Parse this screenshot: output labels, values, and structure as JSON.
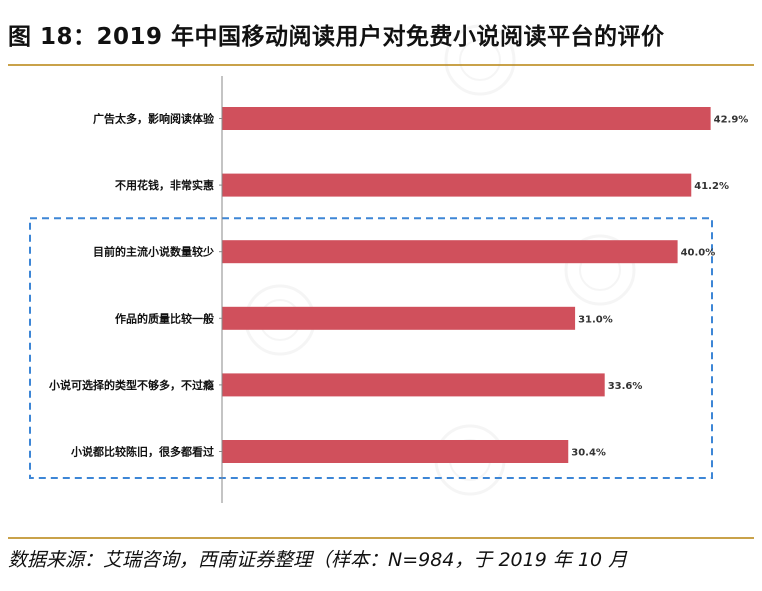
{
  "figure": {
    "title": "图 18：2019 年中国移动阅读用户对免费小说阅读平台的评价",
    "source": "数据来源：艾瑞咨询，西南证券整理（样本：N=984，于 2019 年 10 月"
  },
  "colors": {
    "bar": "#d0505c",
    "rule": "#c9a24a",
    "highlight_box": "#3d86d6",
    "axis": "#888888"
  },
  "chart_data": {
    "type": "bar",
    "orientation": "horizontal",
    "title": "",
    "xlabel": "",
    "ylabel": "",
    "unit": "%",
    "xlim": [
      0,
      45
    ],
    "grid": false,
    "legend": "none",
    "categories": [
      "广告太多，影响阅读体验",
      "不用花钱，非常实惠",
      "目前的主流小说数量较少",
      "作品的质量比较一般",
      "小说可选择的类型不够多，不过瘾",
      "小说都比较陈旧，很多都看过"
    ],
    "values": [
      42.9,
      41.2,
      40.0,
      31.0,
      33.6,
      30.4
    ],
    "value_labels": [
      "42.9%",
      "41.2%",
      "40.0%",
      "31.0%",
      "33.6%",
      "30.4%"
    ],
    "highlighted_categories": [
      "目前的主流小说数量较少",
      "作品的质量比较一般",
      "小说可选择的类型不够多，不过瘾",
      "小说都比较陈旧，很多都看过"
    ]
  }
}
